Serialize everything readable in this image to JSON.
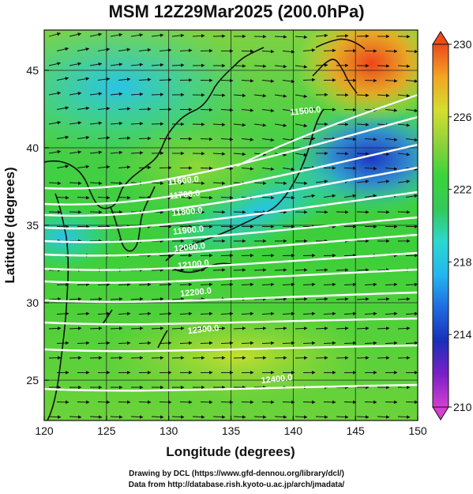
{
  "title": "MSM 12Z29Mar2025 (200.0hPa)",
  "map": {
    "xlabel": "Longitude (degrees)",
    "ylabel": "Latitude  (degrees)",
    "lon_range": [
      120,
      150
    ],
    "lat_range": [
      22.4,
      47.6
    ],
    "lon_ticks": [
      "120",
      "125",
      "130",
      "135",
      "140",
      "145",
      "150"
    ],
    "lon_tick_values": [
      120,
      125,
      130,
      135,
      140,
      145,
      150
    ],
    "lat_ticks": [
      "25",
      "30",
      "35",
      "40",
      "45"
    ],
    "lat_tick_values": [
      25,
      30,
      35,
      40,
      45
    ],
    "grid": true,
    "contour_labels": [
      {
        "text": "11500.0",
        "lon": 141.0,
        "lat": 42.2
      },
      {
        "text": "11600.0",
        "lon": 131.2,
        "lat": 37.7
      },
      {
        "text": "11700.0",
        "lon": 131.3,
        "lat": 36.8
      },
      {
        "text": "11800.0",
        "lon": 131.5,
        "lat": 35.7
      },
      {
        "text": "11900.0",
        "lon": 131.6,
        "lat": 34.5
      },
      {
        "text": "12000.0",
        "lon": 131.7,
        "lat": 33.4
      },
      {
        "text": "12100.0",
        "lon": 132.0,
        "lat": 32.3
      },
      {
        "text": "12200.0",
        "lon": 132.2,
        "lat": 30.5
      },
      {
        "text": "12300.0",
        "lon": 132.8,
        "lat": 28.1
      },
      {
        "text": "12400.0",
        "lon": 138.7,
        "lat": 24.9
      }
    ]
  },
  "colorbar": {
    "min": 210,
    "max": 230,
    "ticks": [
      "230",
      "226",
      "222",
      "218",
      "214",
      "210"
    ],
    "tick_values": [
      230,
      226,
      222,
      218,
      214,
      210
    ],
    "colors": [
      "#d33fd0",
      "#7a1fc8",
      "#1a2fb8",
      "#1f6ae0",
      "#22b6ef",
      "#2bd8d0",
      "#33c95a",
      "#39d43a",
      "#8fd23a",
      "#d4de2d",
      "#f2a623",
      "#ee4a1c"
    ]
  },
  "credits": {
    "line1": "Drawing by DCL (https://www.gfd-dennou.org/library/dcl/)",
    "line2": "Data from http://database.rish.kyoto-u.ac.jp/arch/jmadata/"
  }
}
